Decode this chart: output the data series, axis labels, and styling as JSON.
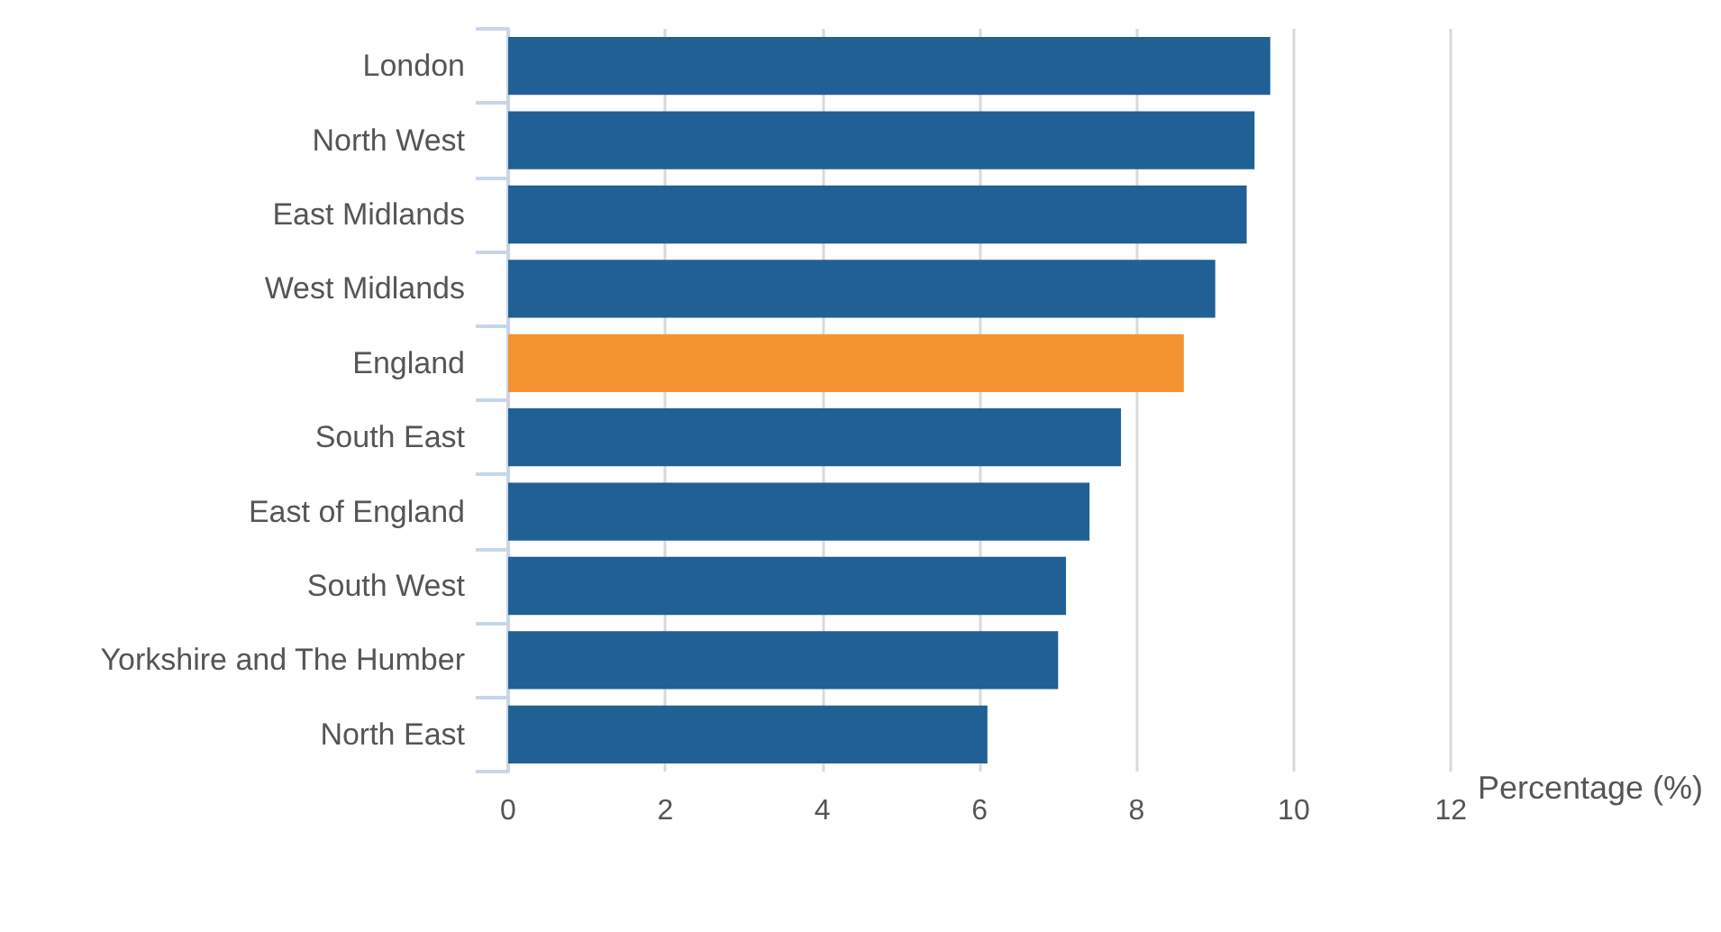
{
  "chart_data": {
    "type": "bar",
    "orientation": "horizontal",
    "categories": [
      "London",
      "North West",
      "East Midlands",
      "West Midlands",
      "England",
      "South East",
      "East of England",
      "South West",
      "Yorkshire and The Humber",
      "North East"
    ],
    "values": [
      9.7,
      9.5,
      9.4,
      9.0,
      8.6,
      7.8,
      7.4,
      7.1,
      7.0,
      6.1
    ],
    "colors": [
      "#206095",
      "#206095",
      "#206095",
      "#206095",
      "#f39431",
      "#206095",
      "#206095",
      "#206095",
      "#206095",
      "#206095"
    ],
    "xlim": [
      0,
      12
    ],
    "xticks": [
      0,
      2,
      4,
      6,
      8,
      10,
      12
    ],
    "xlabel": "Percentage (%)",
    "grid": "x"
  }
}
